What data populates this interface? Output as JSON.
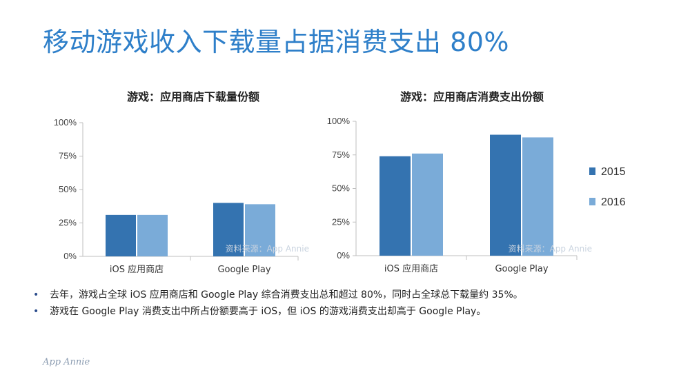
{
  "slide": {
    "title": "移动游戏收入下载量占据消费支出 80%",
    "footer_logo": "App Annie"
  },
  "colors": {
    "s2015": "#3473b0",
    "s2016": "#7aabd8",
    "axis": "#bfbfbf",
    "title_blue": "#2e7fc9"
  },
  "legend": {
    "items": [
      "2015",
      "2016"
    ]
  },
  "bullets": [
    "去年，游戏占全球 iOS 应用商店和 Google Play 综合消费支出总和超过 80%，同时占全球总下载量约 35%。",
    "游戏在 Google Play 消费支出中所占份额要高于 iOS，但 iOS 的游戏消费支出却高于 Google Play。"
  ],
  "chart_data": [
    {
      "type": "bar",
      "title": "游戏：应用商店下载量份额",
      "categories": [
        "iOS 应用商店",
        "Google Play"
      ],
      "series": [
        {
          "name": "2015",
          "values": [
            31,
            40
          ]
        },
        {
          "name": "2016",
          "values": [
            31,
            39
          ]
        }
      ],
      "ylim": [
        0,
        100
      ],
      "yticks": [
        "0%",
        "25%",
        "50%",
        "75%",
        "100%"
      ],
      "source_note": "资料来源：App Annie",
      "grid": false
    },
    {
      "type": "bar",
      "title": "游戏：应用商店消费支出份额",
      "categories": [
        "iOS 应用商店",
        "Google Play"
      ],
      "series": [
        {
          "name": "2015",
          "values": [
            74,
            90
          ]
        },
        {
          "name": "2016",
          "values": [
            76,
            88
          ]
        }
      ],
      "ylim": [
        0,
        100
      ],
      "yticks": [
        "0%",
        "25%",
        "50%",
        "75%",
        "100%"
      ],
      "source_note": "资料来源：App Annie",
      "grid": false,
      "legend_position": "right"
    }
  ]
}
